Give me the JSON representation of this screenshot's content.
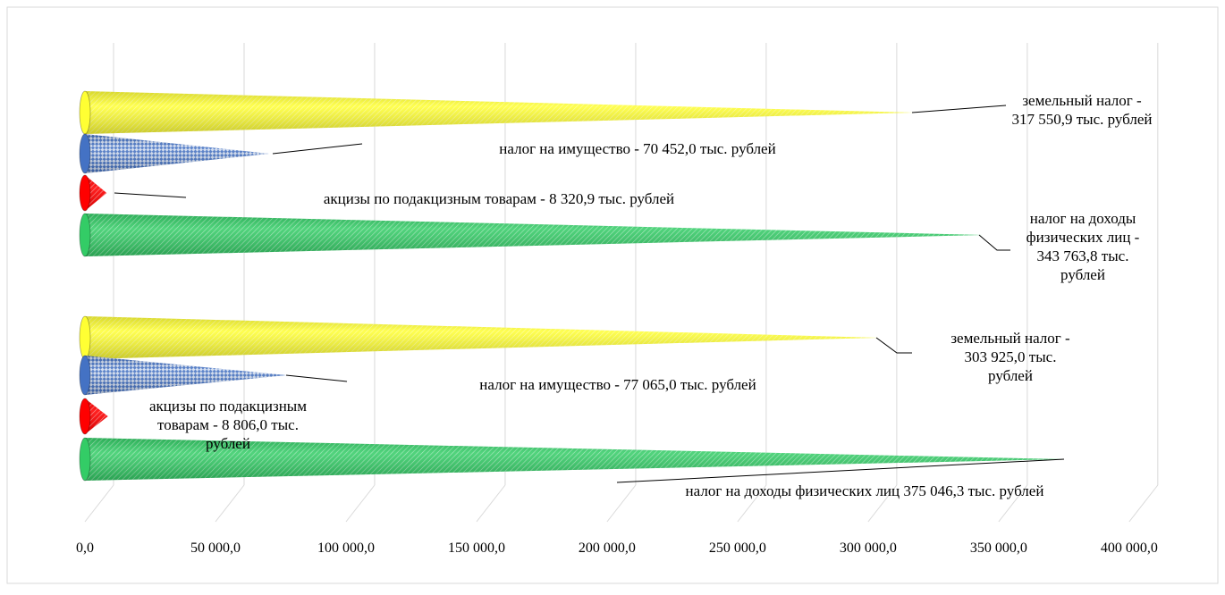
{
  "chart_data": {
    "type": "bar",
    "orientation": "horizontal",
    "bar_shape": "cone",
    "grid": true,
    "xlim": [
      0,
      400000
    ],
    "x_ticks": [
      "0,0",
      "50 000,0",
      "100 000,0",
      "150 000,0",
      "200 000,0",
      "250 000,0",
      "300 000,0",
      "350 000,0",
      "400 000,0"
    ],
    "x_tick_values": [
      0,
      50000,
      100000,
      150000,
      200000,
      250000,
      300000,
      350000,
      400000
    ],
    "groups": [
      {
        "bars": [
          {
            "category": "земельный налог",
            "value": 317550.9,
            "color": "#ffff33",
            "label_lines": [
              "земельный налог -",
              "317 550,9 тыс. рублей"
            ]
          },
          {
            "category": "налог на имущество",
            "value": 70452.0,
            "color": "#4472c4",
            "label_lines": [
              "налог на имущество - 70 452,0 тыс. рублей"
            ]
          },
          {
            "category": "акцизы по подакцизным товарам",
            "value": 8320.9,
            "color": "#ff0000",
            "label_lines": [
              "акцизы по подакцизным товарам - 8 320,9 тыс. рублей"
            ]
          },
          {
            "category": "налог на доходы физических лиц",
            "value": 343763.8,
            "color": "#33cc66",
            "label_lines": [
              "налог на доходы",
              "физических лиц -",
              "343 763,8 тыс.",
              "рублей"
            ]
          }
        ]
      },
      {
        "bars": [
          {
            "category": "земельный налог",
            "value": 303925.0,
            "color": "#ffff33",
            "label_lines": [
              "земельный налог -",
              "303 925,0 тыс.",
              "рублей"
            ]
          },
          {
            "category": "налог на имущество",
            "value": 77065.0,
            "color": "#4472c4",
            "label_lines": [
              "налог на имущество - 77 065,0 тыс. рублей"
            ]
          },
          {
            "category": "акцизы по подакцизным товарам",
            "value": 8806.0,
            "color": "#ff0000",
            "label_lines": [
              "акцизы по подакцизным",
              "товарам - 8 806,0 тыс.",
              "рублей"
            ]
          },
          {
            "category": "налог на доходы физических лиц",
            "value": 375046.3,
            "color": "#33cc66",
            "label_lines": [
              "налог на доходы физических лиц 375 046,3 тыс. рублей"
            ]
          }
        ]
      }
    ]
  }
}
